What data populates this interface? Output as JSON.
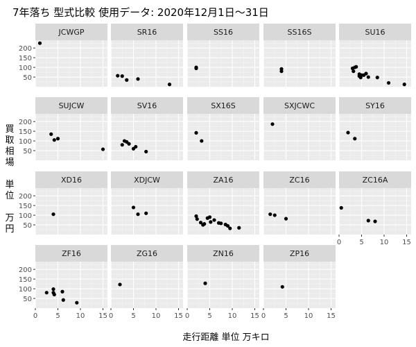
{
  "chart_data": {
    "type": "scatter",
    "title": "7年落ち 型式比較 使用データ: 2020年12月1日～31日",
    "xlabel": "走行距離 単位 万キロ",
    "ylabel_lines": [
      "買",
      "取",
      "相",
      "場",
      "",
      "単",
      "位",
      "",
      "万",
      "円"
    ],
    "xlim": [
      0,
      16
    ],
    "ylim": [
      0,
      240
    ],
    "x_ticks": [
      0,
      5,
      10,
      15
    ],
    "y_ticks": [
      50,
      100,
      150,
      200
    ],
    "grid": true,
    "facets": [
      {
        "name": "JCWGP",
        "points": [
          [
            1.0,
            225
          ]
        ]
      },
      {
        "name": "SR16",
        "points": [
          [
            1.5,
            57
          ],
          [
            2.5,
            55
          ],
          [
            3.5,
            35
          ],
          [
            6.0,
            40
          ],
          [
            13.0,
            12
          ]
        ]
      },
      {
        "name": "SS16",
        "points": [
          [
            2.0,
            100
          ],
          [
            2.0,
            95
          ]
        ]
      },
      {
        "name": "SS16S",
        "points": [
          [
            4.0,
            92
          ],
          [
            4.0,
            80
          ]
        ]
      },
      {
        "name": "SU16",
        "points": [
          [
            3.0,
            95
          ],
          [
            3.2,
            80
          ],
          [
            3.5,
            100
          ],
          [
            3.8,
            103
          ],
          [
            4.5,
            65
          ],
          [
            4.5,
            55
          ],
          [
            4.8,
            48
          ],
          [
            5.0,
            60
          ],
          [
            5.5,
            60
          ],
          [
            6.0,
            68
          ],
          [
            6.5,
            50
          ],
          [
            8.5,
            48
          ],
          [
            11.0,
            20
          ],
          [
            14.5,
            12
          ]
        ]
      },
      {
        "name": "SUJCW",
        "points": [
          [
            3.5,
            135
          ],
          [
            4.2,
            105
          ],
          [
            5.0,
            112
          ],
          [
            15.0,
            57
          ]
        ]
      },
      {
        "name": "SV16",
        "points": [
          [
            2.5,
            80
          ],
          [
            3.0,
            100
          ],
          [
            3.5,
            95
          ],
          [
            4.0,
            85
          ],
          [
            5.0,
            60
          ],
          [
            5.5,
            70
          ],
          [
            7.8,
            45
          ]
        ]
      },
      {
        "name": "SX16S",
        "points": [
          [
            2.0,
            142
          ],
          [
            3.2,
            100
          ]
        ]
      },
      {
        "name": "SXJCWC",
        "points": [
          [
            2.0,
            187
          ]
        ]
      },
      {
        "name": "SY16",
        "points": [
          [
            2.0,
            143
          ],
          [
            3.5,
            112
          ]
        ]
      },
      {
        "name": "XD16",
        "points": [
          [
            4.0,
            105
          ]
        ]
      },
      {
        "name": "XDJCW",
        "points": [
          [
            5.0,
            140
          ],
          [
            6.0,
            105
          ],
          [
            7.8,
            110
          ]
        ]
      },
      {
        "name": "ZA16",
        "points": [
          [
            2.0,
            95
          ],
          [
            2.2,
            80
          ],
          [
            3.0,
            62
          ],
          [
            3.5,
            50
          ],
          [
            3.8,
            55
          ],
          [
            4.5,
            85
          ],
          [
            5.0,
            90
          ],
          [
            5.2,
            65
          ],
          [
            6.0,
            75
          ],
          [
            7.0,
            60
          ],
          [
            7.5,
            58
          ],
          [
            8.5,
            52
          ],
          [
            9.0,
            45
          ],
          [
            9.5,
            32
          ],
          [
            11.5,
            35
          ]
        ]
      },
      {
        "name": "ZC16",
        "points": [
          [
            1.5,
            105
          ],
          [
            2.5,
            100
          ],
          [
            5.0,
            82
          ]
        ]
      },
      {
        "name": "ZC16A",
        "points": [
          [
            0.5,
            138
          ],
          [
            6.5,
            72
          ],
          [
            8.0,
            68
          ]
        ]
      },
      {
        "name": "ZF16",
        "points": [
          [
            2.5,
            80
          ],
          [
            4.0,
            98
          ],
          [
            4.0,
            80
          ],
          [
            4.2,
            70
          ],
          [
            6.0,
            85
          ],
          [
            6.2,
            42
          ],
          [
            9.2,
            28
          ]
        ]
      },
      {
        "name": "ZG16",
        "points": [
          [
            2.0,
            122
          ]
        ]
      },
      {
        "name": "ZN16",
        "points": [
          [
            4.0,
            128
          ]
        ]
      },
      {
        "name": "ZP16",
        "points": [
          [
            4.2,
            110
          ]
        ]
      }
    ]
  }
}
